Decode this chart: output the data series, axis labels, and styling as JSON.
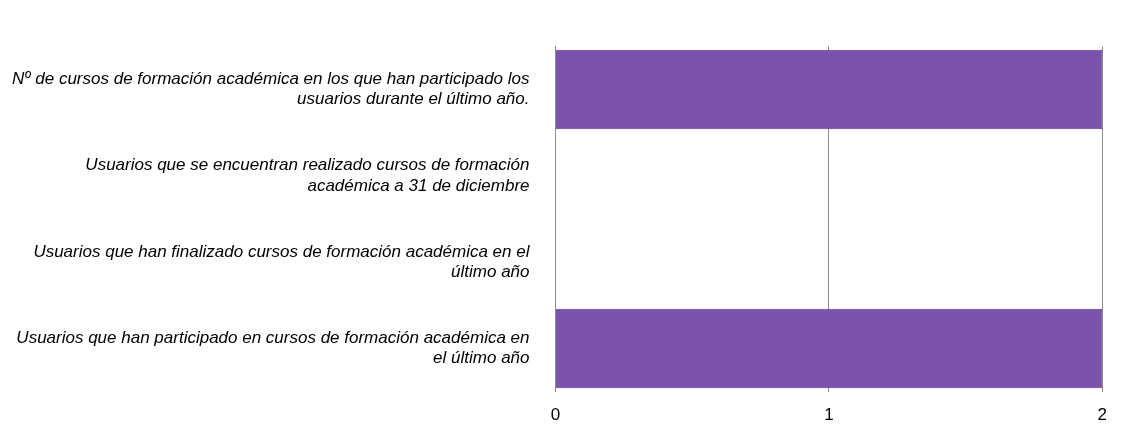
{
  "chart_data": {
    "type": "bar",
    "orientation": "horizontal",
    "categories": [
      "Nº de cursos de formación académica en los que han participado los usuarios durante el último año.",
      "Usuarios que se encuentran realizado cursos de formación académica a 31 de diciembre",
      "Usuarios que han finalizado cursos de formación académica en el último año",
      "Usuarios que han participado en cursos de formación académica en el último año"
    ],
    "values": [
      2,
      0,
      0,
      2
    ],
    "color": "#7b52ae",
    "xlim": [
      0,
      2
    ],
    "xticks": [
      0,
      1,
      2
    ],
    "grid": "x",
    "legend": false
  }
}
